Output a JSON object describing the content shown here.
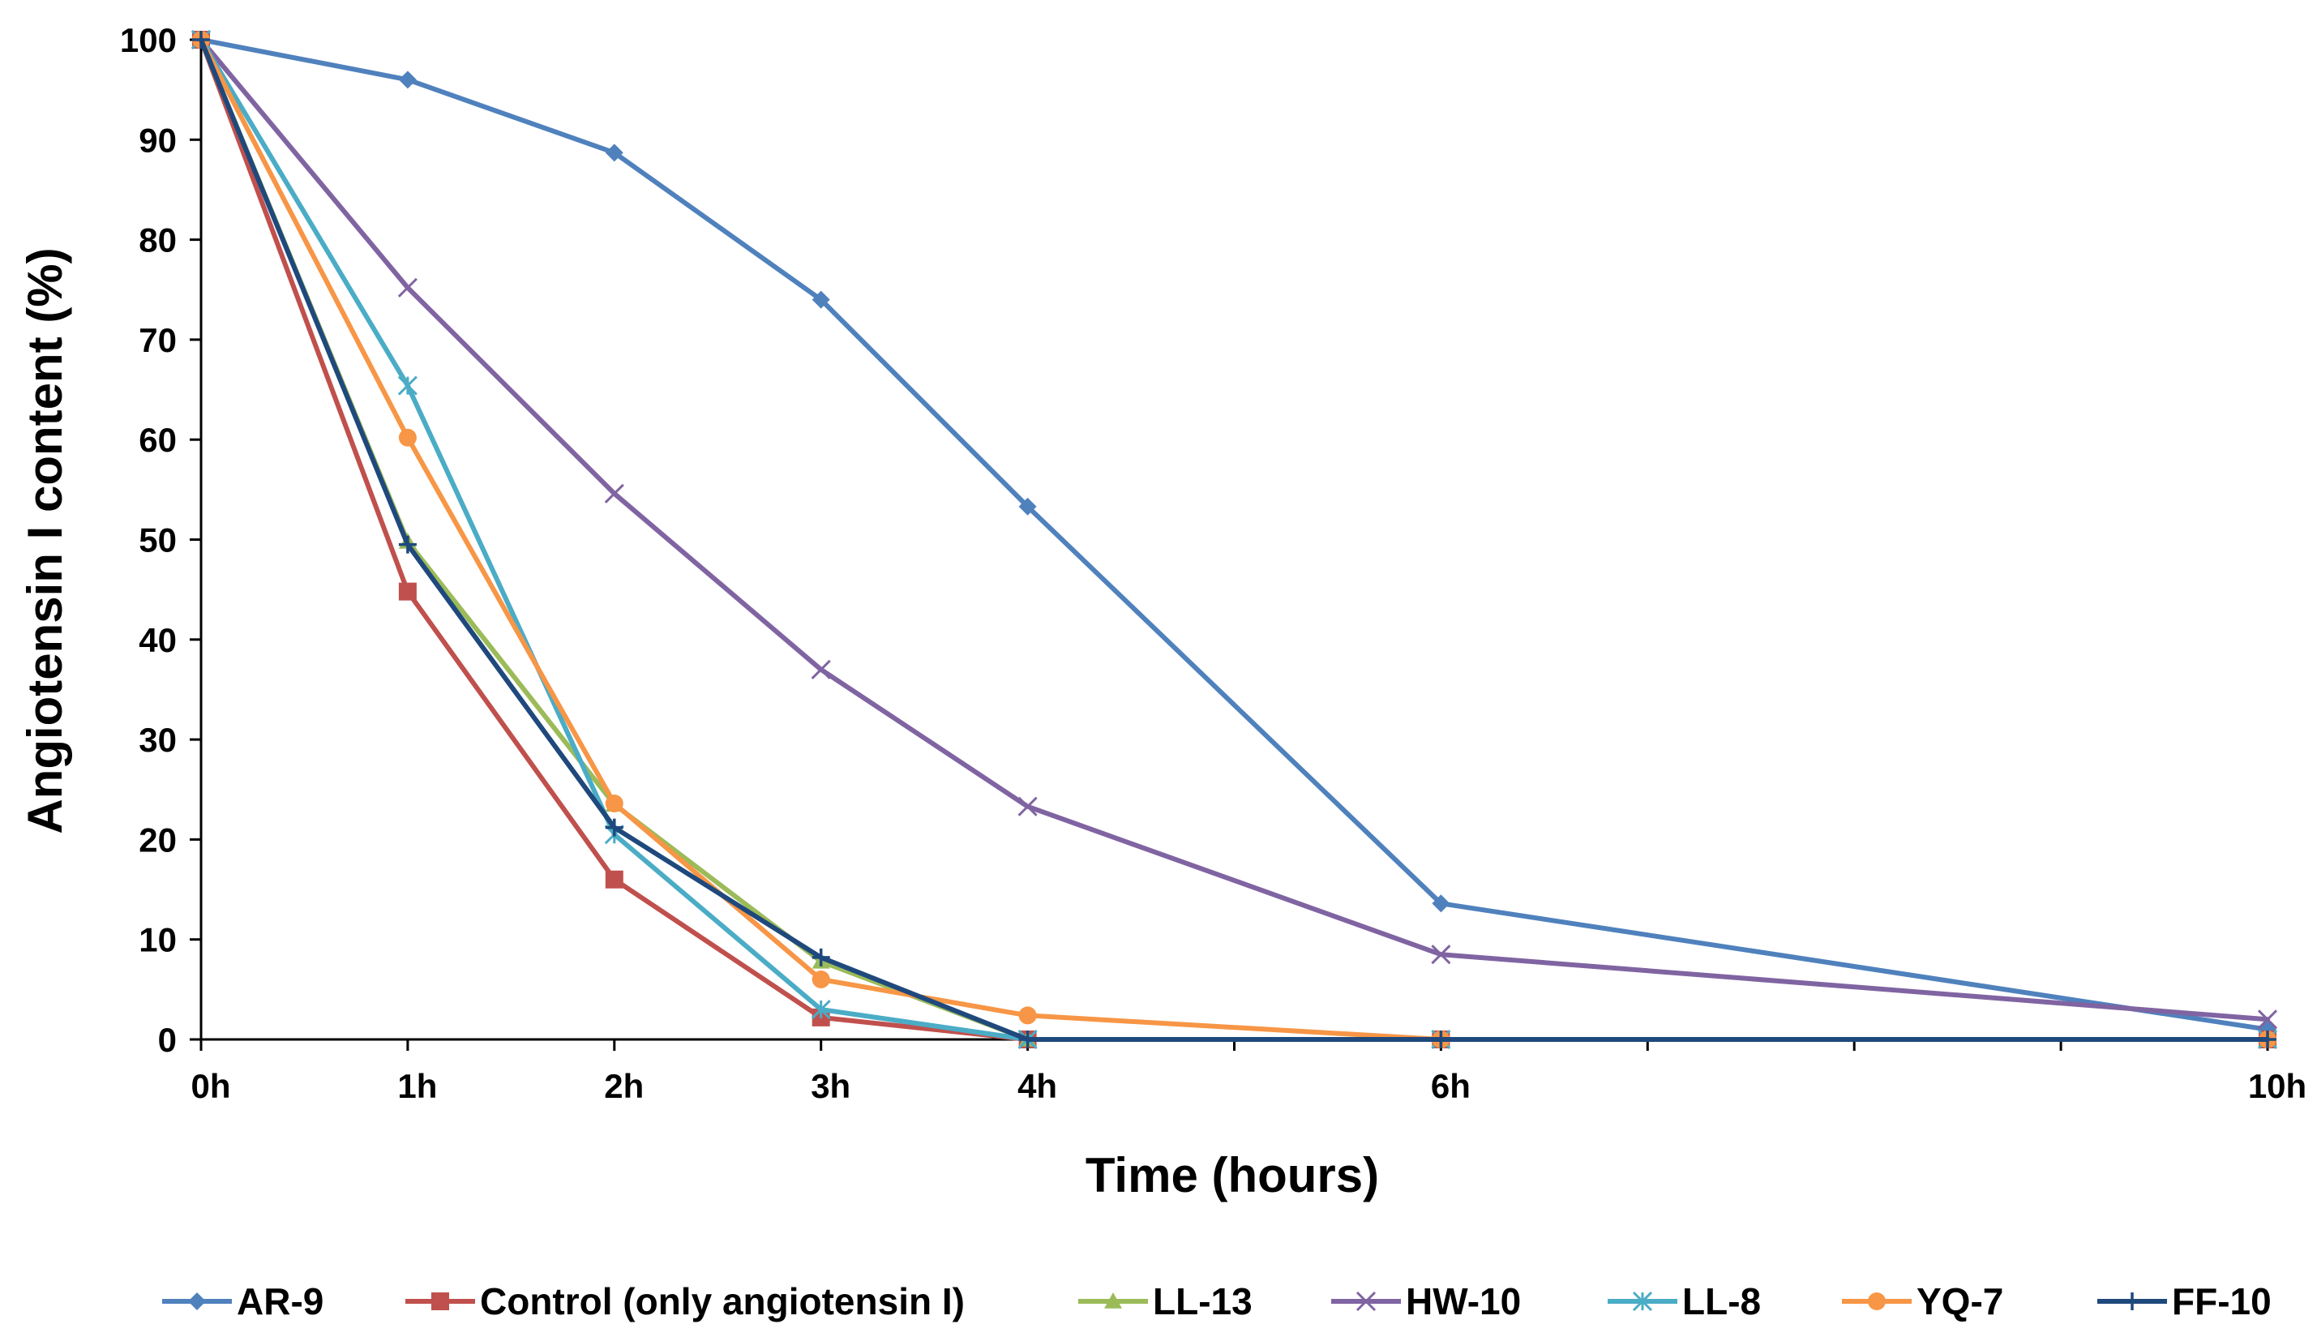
{
  "chart_data": {
    "type": "line",
    "title": "",
    "xlabel": "Time (hours)",
    "ylabel": "Angiotensin I content (%)",
    "x": [
      0,
      1,
      2,
      3,
      4,
      6,
      10
    ],
    "x_tick_labels": [
      "0h",
      "1h",
      "2h",
      "3h",
      "4h",
      "6h",
      "10h"
    ],
    "x_minor_ticks": [
      5,
      7,
      8,
      9
    ],
    "xlim": [
      0,
      10
    ],
    "ylim": [
      0,
      100
    ],
    "y_ticks": [
      0,
      10,
      20,
      30,
      40,
      50,
      60,
      70,
      80,
      90,
      100
    ],
    "grid": false,
    "legend_position": "bottom",
    "series": [
      {
        "name": "AR-9",
        "color": "#4F81BD",
        "marker": "diamond",
        "values": [
          100,
          96,
          88.7,
          74,
          53.3,
          13.6,
          1
        ]
      },
      {
        "name": "Control (only angiotensin I)",
        "color": "#C0504D",
        "marker": "square",
        "values": [
          100,
          44.8,
          16,
          2.2,
          0,
          0,
          0
        ]
      },
      {
        "name": "LL-13",
        "color": "#9BBB59",
        "marker": "triangle",
        "values": [
          100,
          49.8,
          23.5,
          7.8,
          0,
          0,
          0
        ]
      },
      {
        "name": "HW-10",
        "color": "#8064A2",
        "marker": "x",
        "values": [
          100,
          75.2,
          54.6,
          37,
          23.3,
          8.5,
          2
        ]
      },
      {
        "name": "LL-8",
        "color": "#4BACC6",
        "marker": "star",
        "values": [
          100,
          65.4,
          20.5,
          3,
          0,
          0,
          0
        ]
      },
      {
        "name": "YQ-7",
        "color": "#F79646",
        "marker": "circle",
        "values": [
          100,
          60.2,
          23.6,
          6,
          2.4,
          0,
          0
        ]
      },
      {
        "name": "FF-10",
        "color": "#1F497D",
        "marker": "plus",
        "values": [
          100,
          49.5,
          21.2,
          8.2,
          0,
          0,
          0
        ]
      }
    ]
  }
}
